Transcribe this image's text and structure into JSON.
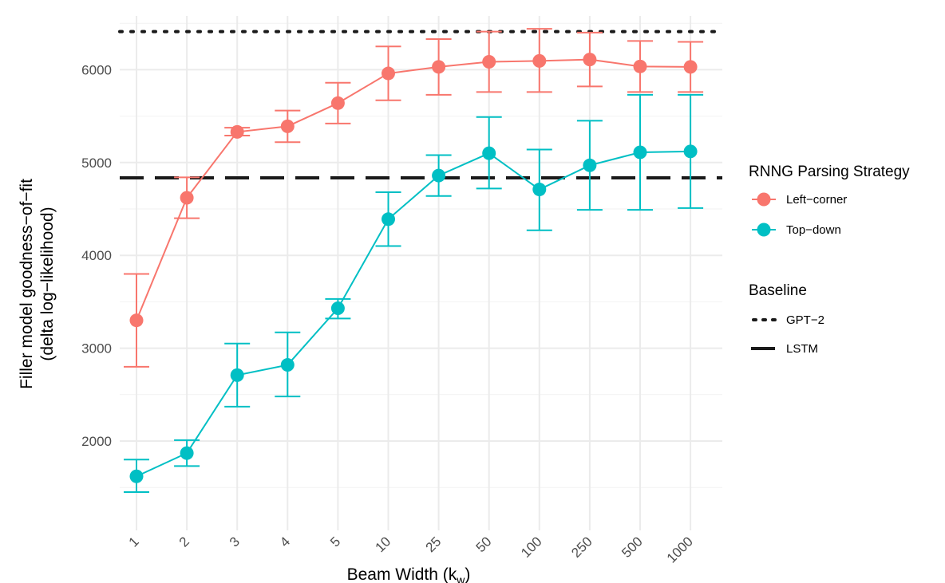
{
  "chart_data": {
    "type": "line",
    "xlabel_main": "Beam Width (k",
    "xlabel_sub": "w",
    "xlabel_end": ")",
    "ylabel_line1": "Filler model goodness−of−fit",
    "ylabel_line2": "(delta log−likelihood)",
    "categories": [
      "1",
      "2",
      "3",
      "4",
      "5",
      "10",
      "25",
      "50",
      "100",
      "250",
      "500",
      "1000"
    ],
    "ylim": [
      1300,
      6550
    ],
    "yticks": [
      2000,
      3000,
      4000,
      5000,
      6000
    ],
    "grid": true,
    "legend_position": "right",
    "series_legend_title": "RNNG Parsing Strategy",
    "baseline_legend_title": "Baseline",
    "series": [
      {
        "name": "Left−corner",
        "color": "#F8766D",
        "values": [
          3300,
          4620,
          5330,
          5390,
          5640,
          5960,
          6030,
          6085,
          6095,
          6110,
          6035,
          6030
        ],
        "err_low": [
          2800,
          4400,
          5290,
          5220,
          5420,
          5670,
          5730,
          5760,
          5760,
          5820,
          5760,
          5760
        ],
        "err_high": [
          3800,
          4840,
          5375,
          5560,
          5860,
          6250,
          6330,
          6410,
          6440,
          6400,
          6310,
          6300
        ]
      },
      {
        "name": "Top−down",
        "color": "#00BFC4",
        "values": [
          1620,
          1870,
          2710,
          2820,
          3430,
          4390,
          4860,
          5100,
          4710,
          4970,
          5110,
          5120
        ],
        "err_low": [
          1450,
          1730,
          2370,
          2480,
          3320,
          4100,
          4640,
          4720,
          4270,
          4490,
          4490,
          4510
        ],
        "err_high": [
          1800,
          2010,
          3050,
          3170,
          3530,
          4680,
          5080,
          5490,
          5140,
          5450,
          5730,
          5730
        ]
      }
    ],
    "baselines": [
      {
        "name": "GPT−2",
        "value": 6410,
        "style": "dotted",
        "color": "#1a1a1a"
      },
      {
        "name": "LSTM",
        "value": 4835,
        "style": "dashed",
        "color": "#1a1a1a"
      }
    ]
  }
}
